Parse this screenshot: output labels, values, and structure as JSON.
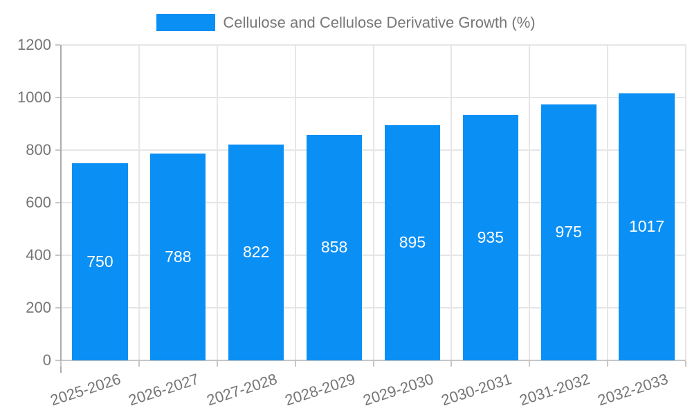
{
  "legend": {
    "label": "Cellulose and Cellulose Derivative Growth (%)"
  },
  "chart_data": {
    "type": "bar",
    "title": "Cellulose and Cellulose Derivative Growth (%)",
    "categories": [
      "2025-2026",
      "2026-2027",
      "2027-2028",
      "2028-2029",
      "2029-2030",
      "2030-2031",
      "2031-2032",
      "2032-2033"
    ],
    "values": [
      750,
      788,
      822,
      858,
      895,
      935,
      975,
      1017
    ],
    "bar_labels": [
      "750",
      "788",
      "822",
      "858",
      "895",
      "935",
      "975",
      "1017"
    ],
    "xlabel": "",
    "ylabel": "",
    "ylim": [
      0,
      1200
    ],
    "yticks": [
      0,
      200,
      400,
      600,
      800,
      1000,
      1200
    ],
    "grid": true,
    "legend_position": "top-center",
    "x_label_rotation_deg": -18,
    "colors": {
      "bar": "#0a8ff5",
      "bar_label": "#ffffff",
      "axis_text": "#757575",
      "legend_text": "#777777",
      "gridline": "#e6e6e6",
      "axis_line": "#ababab",
      "tick": "#c6c6c6",
      "background": "#ffffff"
    }
  }
}
